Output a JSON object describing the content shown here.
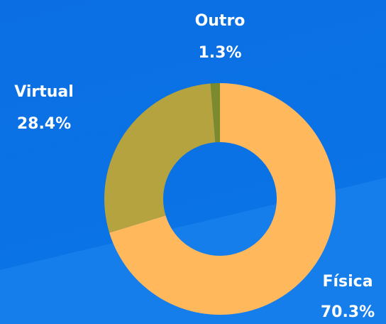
{
  "chart_data": {
    "type": "pie",
    "donut": true,
    "categories": [
      "Física",
      "Virtual",
      "Outro"
    ],
    "values": [
      70.3,
      28.4,
      1.3
    ],
    "value_labels": [
      "70.3%",
      "28.4%",
      "1.3%"
    ],
    "colors": [
      "#ffb85c",
      "#b5a33f",
      "#7b8a2c"
    ]
  }
}
